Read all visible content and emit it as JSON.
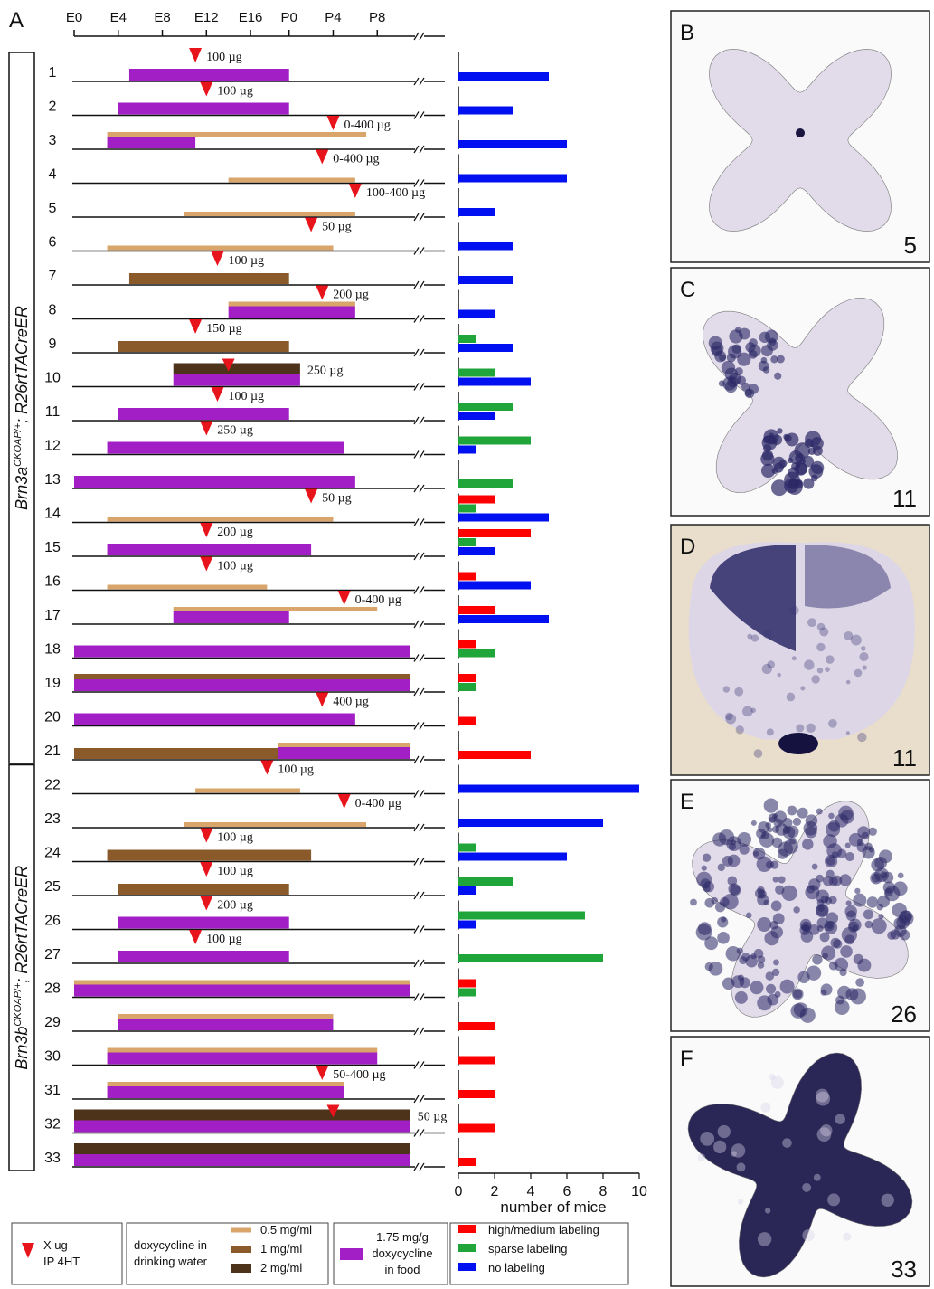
{
  "panel_a": {
    "label": "A"
  },
  "chart_data": [
    {
      "type": "gantt",
      "xlim": [
        0,
        31.5
      ],
      "xticks": [
        {
          "value": 0,
          "label": "E0"
        },
        {
          "value": 4,
          "label": "E4"
        },
        {
          "value": 8,
          "label": "E8"
        },
        {
          "value": 12,
          "label": "E12"
        },
        {
          "value": 16,
          "label": "E16"
        },
        {
          "value": 19.5,
          "label": "P0"
        },
        {
          "value": 23.5,
          "label": "P4"
        },
        {
          "value": 27.5,
          "label": "P8"
        }
      ],
      "injection": {
        "label": [
          "X ug",
          "IP 4HT"
        ],
        "color": "#e8141c"
      },
      "water": {
        "title": [
          "doxycycline in",
          "drinking water"
        ],
        "items": [
          {
            "label": "0.5 mg/ml",
            "color": "#d9a56b"
          },
          {
            "label": "1 mg/ml",
            "color": "#8b5a2b"
          },
          {
            "label": "2 mg/ml",
            "color": "#4d3319"
          }
        ]
      },
      "food": {
        "label": [
          "1.75 mg/g",
          "doxycycline",
          "in food"
        ],
        "color": "#a21fc6"
      },
      "groups": [
        {
          "name": "Brn3a",
          "superscript": "CKOAP/+",
          "suffix": "; R26rtTACreER",
          "rows": [
            {
              "bars": [
                {
                  "start": 5,
                  "end": 19.5,
                  "dose": "1.75 mg/g"
                }
              ],
              "injection": {
                "day": 11,
                "dose": "100 µg"
              }
            },
            {
              "bars": [
                {
                  "start": 4,
                  "end": 19.5,
                  "dose": "1.75 mg/g"
                }
              ],
              "injection": {
                "day": 12,
                "dose": "100 µg"
              }
            },
            {
              "bars": [
                {
                  "start": 3,
                  "end": 11,
                  "dose": "1.75 mg/g"
                },
                {
                  "start": 3,
                  "end": 26.5,
                  "dose": "0.5 mg/ml"
                }
              ],
              "injection": {
                "day": 23.5,
                "dose": "0-400 µg"
              }
            },
            {
              "bars": [
                {
                  "start": 14,
                  "end": 25.5,
                  "dose": "0.5 mg/ml"
                }
              ],
              "injection": {
                "day": 22.5,
                "dose": "0-400 µg"
              }
            },
            {
              "bars": [
                {
                  "start": 10,
                  "end": 25.5,
                  "dose": "0.5 mg/ml"
                }
              ],
              "injection": {
                "day": 25.5,
                "dose": "100-400 µg"
              }
            },
            {
              "bars": [
                {
                  "start": 3,
                  "end": 23.5,
                  "dose": "0.5 mg/ml"
                }
              ],
              "injection": {
                "day": 21.5,
                "dose": "50 µg"
              }
            },
            {
              "bars": [
                {
                  "start": 5,
                  "end": 19.5,
                  "dose": "1 mg/ml"
                }
              ],
              "injection": {
                "day": 13,
                "dose": "100 µg"
              }
            },
            {
              "bars": [
                {
                  "start": 14,
                  "end": 25.5,
                  "dose": "1.75 mg/g"
                },
                {
                  "start": 14,
                  "end": 25.5,
                  "dose": "0.5 mg/ml"
                }
              ],
              "injection": {
                "day": 22.5,
                "dose": "200 µg"
              }
            },
            {
              "bars": [
                {
                  "start": 4,
                  "end": 19.5,
                  "dose": "1 mg/ml"
                }
              ],
              "injection": {
                "day": 11,
                "dose": "150 µg"
              }
            },
            {
              "bars": [
                {
                  "start": 9,
                  "end": 20.5,
                  "dose": "1.75 mg/g"
                },
                {
                  "start": 9,
                  "end": 20.5,
                  "dose": "2 mg/ml"
                }
              ],
              "injection": {
                "day": 14,
                "dose": "250 µg"
              }
            },
            {
              "bars": [
                {
                  "start": 4,
                  "end": 19.5,
                  "dose": "1.75 mg/g"
                }
              ],
              "injection": {
                "day": 13,
                "dose": "100 µg"
              }
            },
            {
              "bars": [
                {
                  "start": 3,
                  "end": 24.5,
                  "dose": "1.75 mg/g"
                }
              ],
              "injection": {
                "day": 12,
                "dose": "250 µg"
              }
            },
            {
              "bars": [
                {
                  "start": 0,
                  "end": 25.5,
                  "dose": "1.75 mg/g"
                }
              ]
            },
            {
              "bars": [
                {
                  "start": 3,
                  "end": 23.5,
                  "dose": "0.5 mg/ml"
                }
              ],
              "injection": {
                "day": 21.5,
                "dose": "50 µg"
              }
            },
            {
              "bars": [
                {
                  "start": 3,
                  "end": 21.5,
                  "dose": "1.75 mg/g"
                }
              ],
              "injection": {
                "day": 12,
                "dose": "200 µg"
              }
            },
            {
              "bars": [
                {
                  "start": 3,
                  "end": 17.5,
                  "dose": "0.5 mg/ml"
                }
              ],
              "injection": {
                "day": 12,
                "dose": "100 µg"
              }
            },
            {
              "bars": [
                {
                  "start": 9,
                  "end": 19.5,
                  "dose": "1.75 mg/g"
                },
                {
                  "start": 9,
                  "end": 27.5,
                  "dose": "0.5 mg/ml"
                }
              ],
              "injection": {
                "day": 24.5,
                "dose": "0-400 µg"
              }
            },
            {
              "bars": [
                {
                  "start": 0,
                  "end": 30.5,
                  "dose": "1.75 mg/g"
                }
              ]
            },
            {
              "bars": [
                {
                  "start": 0,
                  "end": 30.5,
                  "dose": "1.75 mg/g"
                },
                {
                  "start": 0,
                  "end": 30.5,
                  "dose": "1 mg/ml"
                }
              ]
            },
            {
              "bars": [
                {
                  "start": 0,
                  "end": 25.5,
                  "dose": "1.75 mg/g"
                }
              ],
              "injection": {
                "day": 22.5,
                "dose": "400 µg"
              }
            },
            {
              "bars": [
                {
                  "start": 18.5,
                  "end": 30.5,
                  "dose": "1.75 mg/g"
                },
                {
                  "start": 0,
                  "end": 18.5,
                  "dose": "1 mg/ml"
                },
                {
                  "start": 18.5,
                  "end": 30.5,
                  "dose": "0.5 mg/ml"
                }
              ]
            }
          ]
        },
        {
          "name": "Brn3b",
          "superscript": "CKOAP/+",
          "suffix": "; R26rtTACreER",
          "rows": [
            {
              "bars": [
                {
                  "start": 11,
                  "end": 20.5,
                  "dose": "0.5 mg/ml"
                }
              ],
              "injection": {
                "day": 17.5,
                "dose": "100 µg"
              }
            },
            {
              "bars": [
                {
                  "start": 10,
                  "end": 26.5,
                  "dose": "0.5 mg/ml"
                }
              ],
              "injection": {
                "day": 24.5,
                "dose": "0-400 µg"
              }
            },
            {
              "bars": [
                {
                  "start": 3,
                  "end": 21.5,
                  "dose": "1 mg/ml"
                }
              ],
              "injection": {
                "day": 12,
                "dose": "100 µg"
              }
            },
            {
              "bars": [
                {
                  "start": 4,
                  "end": 19.5,
                  "dose": "1 mg/ml"
                }
              ],
              "injection": {
                "day": 12,
                "dose": "100 µg"
              }
            },
            {
              "bars": [
                {
                  "start": 4,
                  "end": 19.5,
                  "dose": "1.75 mg/g"
                }
              ],
              "injection": {
                "day": 12,
                "dose": "200 µg"
              }
            },
            {
              "bars": [
                {
                  "start": 4,
                  "end": 19.5,
                  "dose": "1.75 mg/g"
                }
              ],
              "injection": {
                "day": 11,
                "dose": "100 µg"
              }
            },
            {
              "bars": [
                {
                  "start": 0,
                  "end": 30.5,
                  "dose": "1.75 mg/g"
                },
                {
                  "start": 0,
                  "end": 30.5,
                  "dose": "0.5 mg/ml"
                }
              ]
            },
            {
              "bars": [
                {
                  "start": 4,
                  "end": 23.5,
                  "dose": "1.75 mg/g"
                },
                {
                  "start": 4,
                  "end": 23.5,
                  "dose": "0.5 mg/ml"
                }
              ]
            },
            {
              "bars": [
                {
                  "start": 3,
                  "end": 27.5,
                  "dose": "1.75 mg/g"
                },
                {
                  "start": 3,
                  "end": 27.5,
                  "dose": "0.5 mg/ml"
                }
              ]
            },
            {
              "bars": [
                {
                  "start": 3,
                  "end": 24.5,
                  "dose": "1.75 mg/g"
                },
                {
                  "start": 3,
                  "end": 24.5,
                  "dose": "0.5 mg/ml"
                }
              ],
              "injection": {
                "day": 22.5,
                "dose": "50-400 µg"
              }
            },
            {
              "bars": [
                {
                  "start": 0,
                  "end": 30.5,
                  "dose": "1.75 mg/g"
                },
                {
                  "start": 0,
                  "end": 30.5,
                  "dose": "2 mg/ml"
                }
              ],
              "injection": {
                "day": 23.5,
                "dose": "50 µg"
              }
            },
            {
              "bars": [
                {
                  "start": 0,
                  "end": 30.5,
                  "dose": "1.75 mg/g"
                },
                {
                  "start": 0,
                  "end": 30.5,
                  "dose": "2 mg/ml"
                }
              ]
            }
          ]
        }
      ]
    },
    {
      "type": "bar",
      "orientation": "horizontal",
      "categories": [
        "1",
        "2",
        "3",
        "4",
        "5",
        "6",
        "7",
        "8",
        "9",
        "10",
        "11",
        "12",
        "13",
        "14",
        "15",
        "16",
        "17",
        "18",
        "19",
        "20",
        "21",
        "22",
        "23",
        "24",
        "25",
        "26",
        "27",
        "28",
        "29",
        "30",
        "31",
        "32",
        "33"
      ],
      "series": [
        {
          "name": "high/medium labeling",
          "color": "#ff0000",
          "values": [
            0,
            0,
            0,
            0,
            0,
            0,
            0,
            0,
            0,
            0,
            0,
            0,
            0,
            2,
            4,
            1,
            2,
            1,
            1,
            1,
            4,
            0,
            0,
            0,
            0,
            0,
            0,
            1,
            2,
            2,
            2,
            2,
            1
          ]
        },
        {
          "name": "sparse labeling",
          "color": "#1fa53a",
          "values": [
            0,
            0,
            0,
            0,
            0,
            0,
            0,
            0,
            1,
            2,
            3,
            4,
            3,
            1,
            1,
            0,
            0,
            2,
            1,
            0,
            0,
            0,
            0,
            1,
            3,
            7,
            8,
            1,
            0,
            0,
            0,
            0,
            0
          ]
        },
        {
          "name": "no labeling",
          "color": "#0010f0",
          "values": [
            5,
            3,
            6,
            6,
            2,
            3,
            3,
            2,
            3,
            4,
            2,
            1,
            0,
            5,
            2,
            4,
            5,
            0,
            0,
            0,
            0,
            10,
            8,
            6,
            1,
            1,
            0,
            0,
            0,
            0,
            0,
            0,
            0
          ]
        }
      ],
      "xlim": [
        0,
        10
      ],
      "xticks": [
        0,
        2,
        4,
        6,
        8,
        10
      ],
      "xlabel": "number of mice"
    }
  ],
  "panels": [
    {
      "label": "B",
      "number": 5
    },
    {
      "label": "C",
      "number": 11
    },
    {
      "label": "D",
      "number": 11
    },
    {
      "label": "E",
      "number": 26
    },
    {
      "label": "F",
      "number": 33
    }
  ]
}
